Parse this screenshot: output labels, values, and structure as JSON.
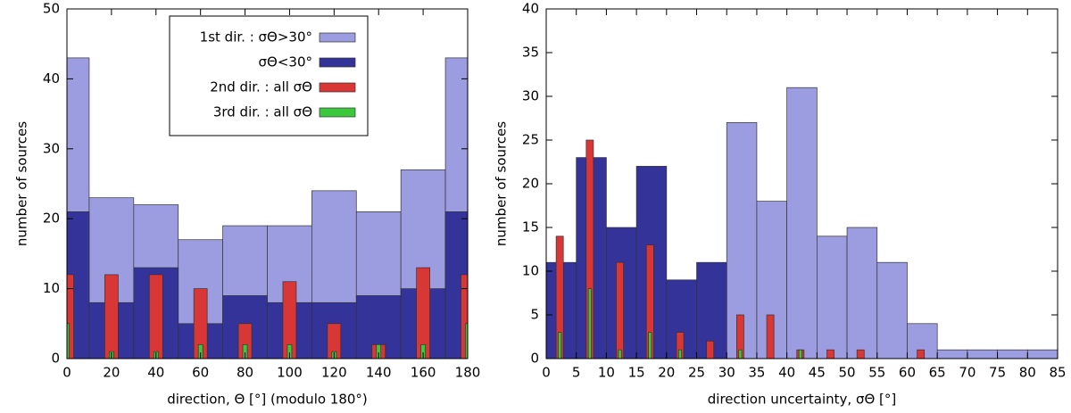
{
  "chart_data": [
    {
      "type": "histogram",
      "xlabel": "direction, Θ [°] (modulo 180°)",
      "ylabel": "number of sources",
      "xlim": [
        0,
        180
      ],
      "xticks": [
        0,
        20,
        40,
        60,
        80,
        100,
        120,
        140,
        160,
        180
      ],
      "ylim": [
        0,
        50
      ],
      "yticks": [
        0,
        10,
        20,
        30,
        40,
        50
      ],
      "legend": "top-left",
      "series": [
        {
          "name": "1st dir. : σΘ>30°",
          "color": "#9c9ce0",
          "bins": [
            0,
            10,
            30,
            50,
            70,
            90,
            110,
            130,
            150,
            170,
            180
          ],
          "values": [
            43,
            23,
            22,
            17,
            19,
            19,
            24,
            21,
            27,
            43
          ]
        },
        {
          "name": "σΘ<30°",
          "color": "#33339a",
          "bins": [
            0,
            10,
            30,
            50,
            70,
            90,
            110,
            130,
            150,
            170,
            180
          ],
          "values": [
            21,
            8,
            13,
            5,
            9,
            8,
            8,
            9,
            10,
            21
          ]
        },
        {
          "name": "2nd dir. :    all σΘ",
          "color": "#d93636",
          "bar_width": 6,
          "x": [
            0,
            20,
            40,
            60,
            80,
            100,
            120,
            140,
            160,
            180
          ],
          "values": [
            12,
            12,
            12,
            10,
            5,
            11,
            5,
            2,
            13,
            12
          ]
        },
        {
          "name": "3rd dir. :    all σΘ",
          "color": "#3cc83c",
          "bar_width": 2,
          "x": [
            0,
            20,
            40,
            60,
            80,
            100,
            120,
            140,
            160,
            180
          ],
          "values": [
            5,
            1,
            1,
            2,
            2,
            2,
            1,
            2,
            2,
            5
          ]
        }
      ]
    },
    {
      "type": "histogram",
      "xlabel": "direction uncertainty, σΘ [°]",
      "ylabel": "number of sources",
      "xlim": [
        0,
        85
      ],
      "xticks": [
        0,
        5,
        10,
        15,
        20,
        25,
        30,
        35,
        40,
        45,
        50,
        55,
        60,
        65,
        70,
        75,
        80,
        85
      ],
      "ylim": [
        0,
        40
      ],
      "yticks": [
        0,
        5,
        10,
        15,
        20,
        25,
        30,
        35,
        40
      ],
      "series": [
        {
          "color": "#9c9ce0",
          "bins": [
            30,
            35,
            40,
            45,
            50,
            55,
            60,
            65,
            70,
            75,
            80,
            85
          ],
          "values": [
            27,
            18,
            31,
            14,
            15,
            11,
            4,
            1,
            1,
            1,
            1
          ]
        },
        {
          "color": "#33339a",
          "bins": [
            0,
            5,
            10,
            15,
            20,
            25,
            30
          ],
          "values": [
            11,
            23,
            15,
            22,
            9,
            11
          ]
        },
        {
          "color": "#d93636",
          "bar_width": 1.2,
          "x": [
            2.25,
            7.25,
            12.25,
            17.25,
            22.25,
            27.25,
            32.25,
            37.25,
            42.25,
            47.25,
            52.25,
            62.25
          ],
          "values": [
            14,
            25,
            11,
            13,
            3,
            2,
            5,
            5,
            1,
            1,
            1,
            1
          ]
        },
        {
          "color": "#3cc83c",
          "bar_width": 0.5,
          "x": [
            2.25,
            7.25,
            12.25,
            17.25,
            22.25,
            32.25,
            42.25
          ],
          "values": [
            3,
            8,
            1,
            3,
            1,
            1,
            1
          ]
        }
      ]
    }
  ]
}
